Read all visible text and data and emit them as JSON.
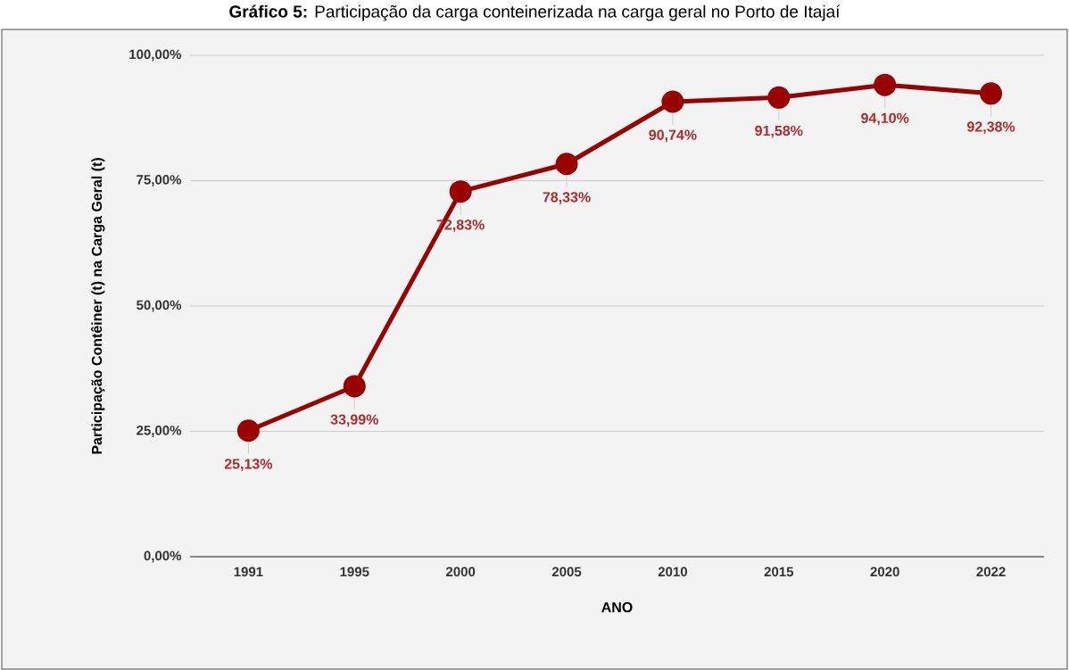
{
  "chart_data": {
    "type": "line",
    "title": "**Gráfico 5:** Participação da carga conteinerizada na carga geral no Porto de Itajaí",
    "xlabel": "ANO",
    "ylabel": "Participação Contêiner (t) na Carga Geral (t)",
    "categories": [
      "1991",
      "1995",
      "2000",
      "2005",
      "2010",
      "2015",
      "2020",
      "2022"
    ],
    "values": [
      25.13,
      33.99,
      72.83,
      78.33,
      90.74,
      91.58,
      94.1,
      92.38
    ],
    "value_labels": [
      "25,13%",
      "33,99%",
      "72,83%",
      "78,33%",
      "90,74%",
      "91,58%",
      "94,10%",
      "92,38%"
    ],
    "color": "#990000",
    "marker": "circle",
    "line_style": "solid",
    "grid": "y",
    "ylim": [
      0,
      100
    ],
    "yticks": [
      {
        "value": 0,
        "label": "0,00%"
      },
      {
        "value": 25,
        "label": "25,00%"
      },
      {
        "value": 50,
        "label": "50,00%"
      },
      {
        "value": 75,
        "label": "75,00%"
      },
      {
        "value": 100,
        "label": "100,00%"
      }
    ]
  }
}
